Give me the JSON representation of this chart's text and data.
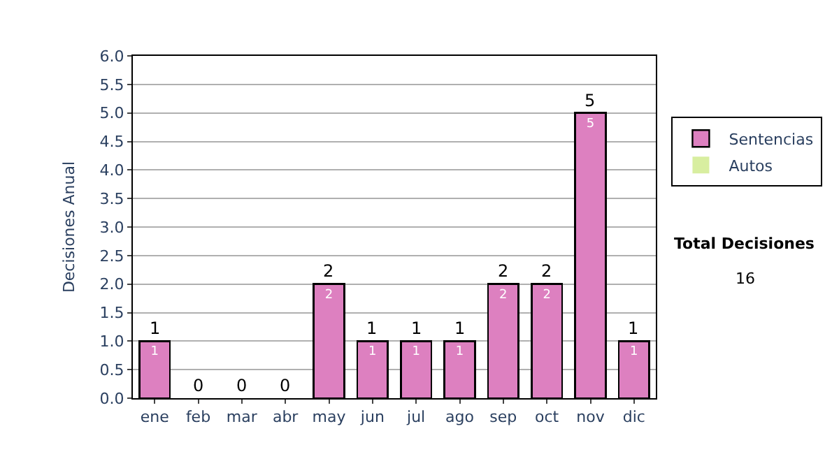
{
  "chart_data": {
    "type": "bar",
    "ylabel": "Decisiones Anual",
    "categories": [
      "ene",
      "feb",
      "mar",
      "abr",
      "may",
      "jun",
      "jul",
      "ago",
      "sep",
      "oct",
      "nov",
      "dic"
    ],
    "series": [
      {
        "name": "Sentencias",
        "color": "#dd80c0",
        "values": [
          1,
          0,
          0,
          0,
          2,
          1,
          1,
          1,
          2,
          2,
          5,
          1
        ],
        "value_labels": [
          "1",
          null,
          null,
          null,
          "2",
          "1",
          "1",
          "1",
          "2",
          "2",
          "5",
          "1"
        ]
      },
      {
        "name": "Autos",
        "color": "#d8eea0",
        "values": [
          0,
          0,
          0,
          0,
          0,
          0,
          0,
          0,
          0,
          0,
          0,
          0
        ]
      }
    ],
    "stacked": true,
    "totals": [
      "1",
      "0",
      "0",
      "0",
      "2",
      "1",
      "1",
      "1",
      "2",
      "2",
      "5",
      "1"
    ],
    "ylim": [
      0,
      6
    ],
    "yticks": [
      {
        "value": 0,
        "label": "0.0"
      },
      {
        "value": 0.5,
        "label": "0.5"
      },
      {
        "value": 1,
        "label": "1.0"
      },
      {
        "value": 1.5,
        "label": "1.5"
      },
      {
        "value": 2,
        "label": "2.0"
      },
      {
        "value": 2.5,
        "label": "2.5"
      },
      {
        "value": 3,
        "label": "3.0"
      },
      {
        "value": 3.5,
        "label": "3.5"
      },
      {
        "value": 4,
        "label": "4.0"
      },
      {
        "value": 4.5,
        "label": "4.5"
      },
      {
        "value": 5,
        "label": "5.0"
      },
      {
        "value": 5.5,
        "label": "5.5"
      },
      {
        "value": 6,
        "label": "6.0"
      }
    ],
    "grid": "y",
    "legend": "right",
    "annotations": [
      "Total Decisiones",
      "16"
    ]
  }
}
